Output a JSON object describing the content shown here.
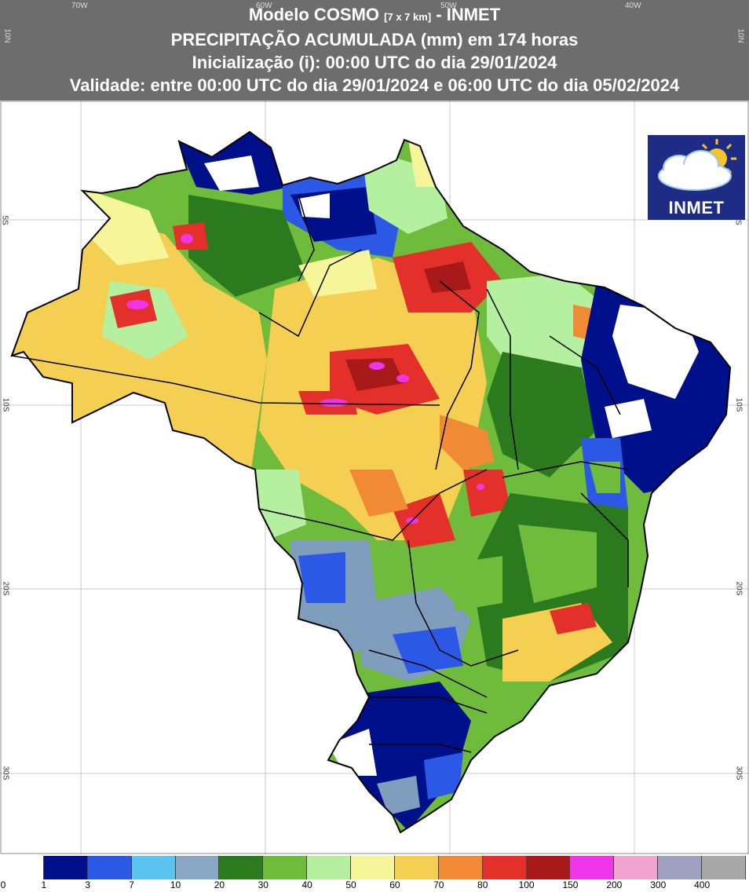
{
  "header": {
    "title_prefix": "Modelo COSMO",
    "title_resolution": "[7 x 7 km]",
    "title_suffix": "- INMET",
    "subtitle": "PRECIPITAÇÃO ACUMULADA (mm) em 174 horas",
    "initialization": "Inicialização (i): 00:00 UTC do dia 29/01/2024",
    "validity": "Validade: entre 00:00 UTC do dia 29/01/2024 e 06:00 UTC do dia 05/02/2024"
  },
  "map": {
    "longitude_labels": [
      "70W",
      "60W",
      "50W",
      "40W"
    ],
    "latitude_labels": [
      "10N",
      "5S",
      "10S",
      "20S",
      "30S"
    ],
    "region_colors": {
      "dark_blue": "#000f8a",
      "blue": "#2c58e6",
      "light_blue": "#5bc4ee",
      "grey_blue": "#7f9dbd",
      "dark_green": "#2b7a1e",
      "green": "#6fbb3c",
      "light_green": "#b4f0a0",
      "light_yellow": "#f6f59a",
      "yellow": "#f5cf52",
      "orange": "#f08a35",
      "red": "#e4302b",
      "dark_red": "#a8191a",
      "magenta": "#ee36e8"
    }
  },
  "logo": {
    "text": "INMET",
    "background": "#1f2c86",
    "icons": [
      "cloud-icon",
      "sun-icon"
    ]
  },
  "legend": {
    "colors": [
      "#ffffff",
      "#000f8a",
      "#2c58e6",
      "#5bc4ee",
      "#8aa8c4",
      "#2b7a1e",
      "#6fbb3c",
      "#b4f0a0",
      "#f6f59a",
      "#f5cf52",
      "#f08a35",
      "#e4302b",
      "#a8191a",
      "#ee36e8",
      "#f0a4cf",
      "#a0a0c0",
      "#a8a8a8"
    ],
    "labels": [
      "0",
      "1",
      "3",
      "7",
      "10",
      "20",
      "30",
      "40",
      "50",
      "60",
      "70",
      "80",
      "100",
      "150",
      "200",
      "300",
      "400"
    ]
  }
}
